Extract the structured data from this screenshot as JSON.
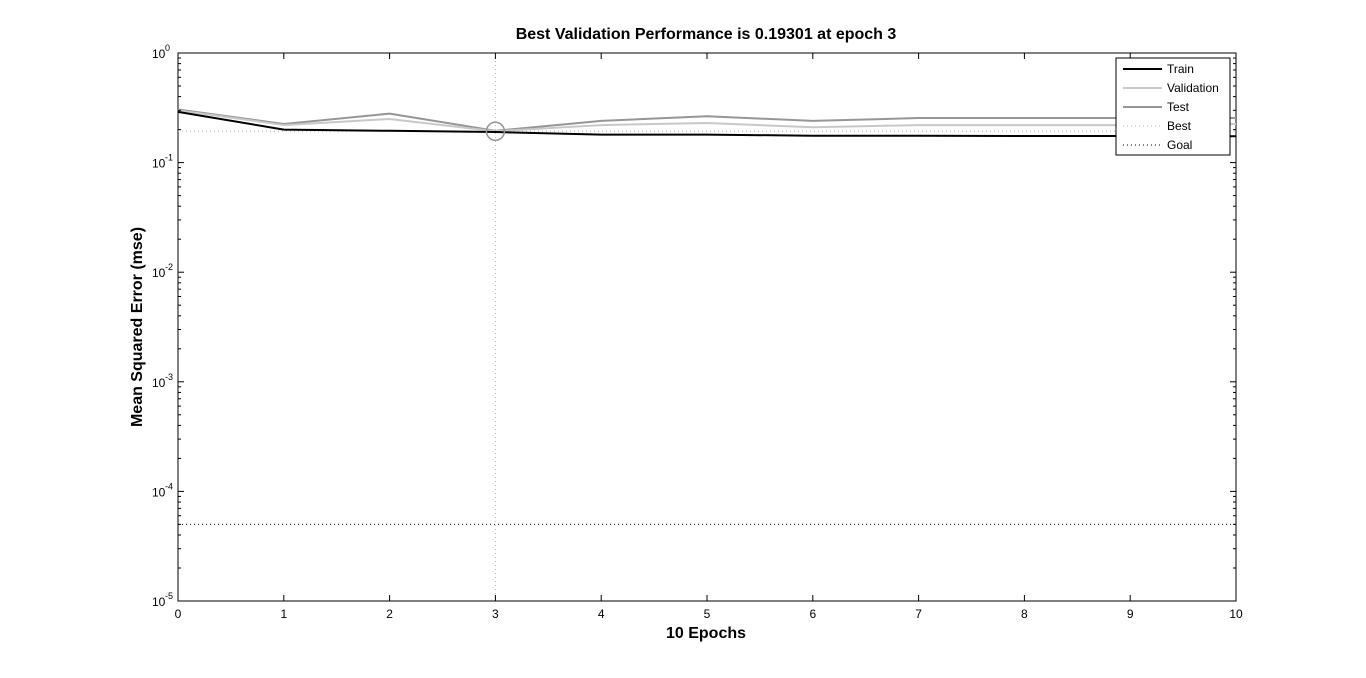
{
  "chart_data": {
    "type": "line",
    "title": "Best Validation Performance is 0.19301 at epoch 3",
    "xlabel": "10 Epochs",
    "ylabel": "Mean Squared Error  (mse)",
    "xlim": [
      0,
      10
    ],
    "ylim": [
      1e-05,
      1
    ],
    "yscale": "log",
    "grid": false,
    "legend_position": "top-right",
    "x_ticks": [
      "0",
      "1",
      "2",
      "3",
      "4",
      "5",
      "6",
      "7",
      "8",
      "9",
      "10"
    ],
    "y_ticks": [
      {
        "base": "10",
        "exp": "0",
        "value": 1
      },
      {
        "base": "10",
        "exp": "-1",
        "value": 0.1
      },
      {
        "base": "10",
        "exp": "-2",
        "value": 0.01
      },
      {
        "base": "10",
        "exp": "-3",
        "value": 0.001
      },
      {
        "base": "10",
        "exp": "-4",
        "value": 0.0001
      },
      {
        "base": "10",
        "exp": "-5",
        "value": 1e-05
      }
    ],
    "x": [
      0,
      1,
      2,
      3,
      4,
      5,
      6,
      7,
      8,
      9,
      10
    ],
    "series": [
      {
        "name": "Train",
        "color": "#000000",
        "style": "solid",
        "values": [
          0.29,
          0.2,
          0.195,
          0.19,
          0.18,
          0.18,
          0.176,
          0.176,
          0.175,
          0.175,
          0.174
        ]
      },
      {
        "name": "Validation",
        "color": "#c8c8c8",
        "style": "solid",
        "values": [
          0.3,
          0.22,
          0.25,
          0.193,
          0.22,
          0.23,
          0.21,
          0.22,
          0.22,
          0.22,
          0.225
        ]
      },
      {
        "name": "Test",
        "color": "#969696",
        "style": "solid",
        "values": [
          0.305,
          0.225,
          0.28,
          0.195,
          0.24,
          0.265,
          0.24,
          0.255,
          0.255,
          0.255,
          0.255
        ]
      }
    ],
    "best": {
      "name": "Best",
      "epoch": 3,
      "value": 0.19301,
      "color": "#b4b4b4",
      "style": "dotted"
    },
    "goal": {
      "name": "Goal",
      "value": 5e-05,
      "color": "#000000",
      "style": "dotted"
    },
    "legend": [
      {
        "label": "Train",
        "color": "#000000",
        "style": "solid"
      },
      {
        "label": "Validation",
        "color": "#c8c8c8",
        "style": "solid"
      },
      {
        "label": "Test",
        "color": "#969696",
        "style": "solid"
      },
      {
        "label": "Best",
        "color": "#b4b4b4",
        "style": "dotted"
      },
      {
        "label": "Goal",
        "color": "#000000",
        "style": "dotted"
      }
    ]
  }
}
